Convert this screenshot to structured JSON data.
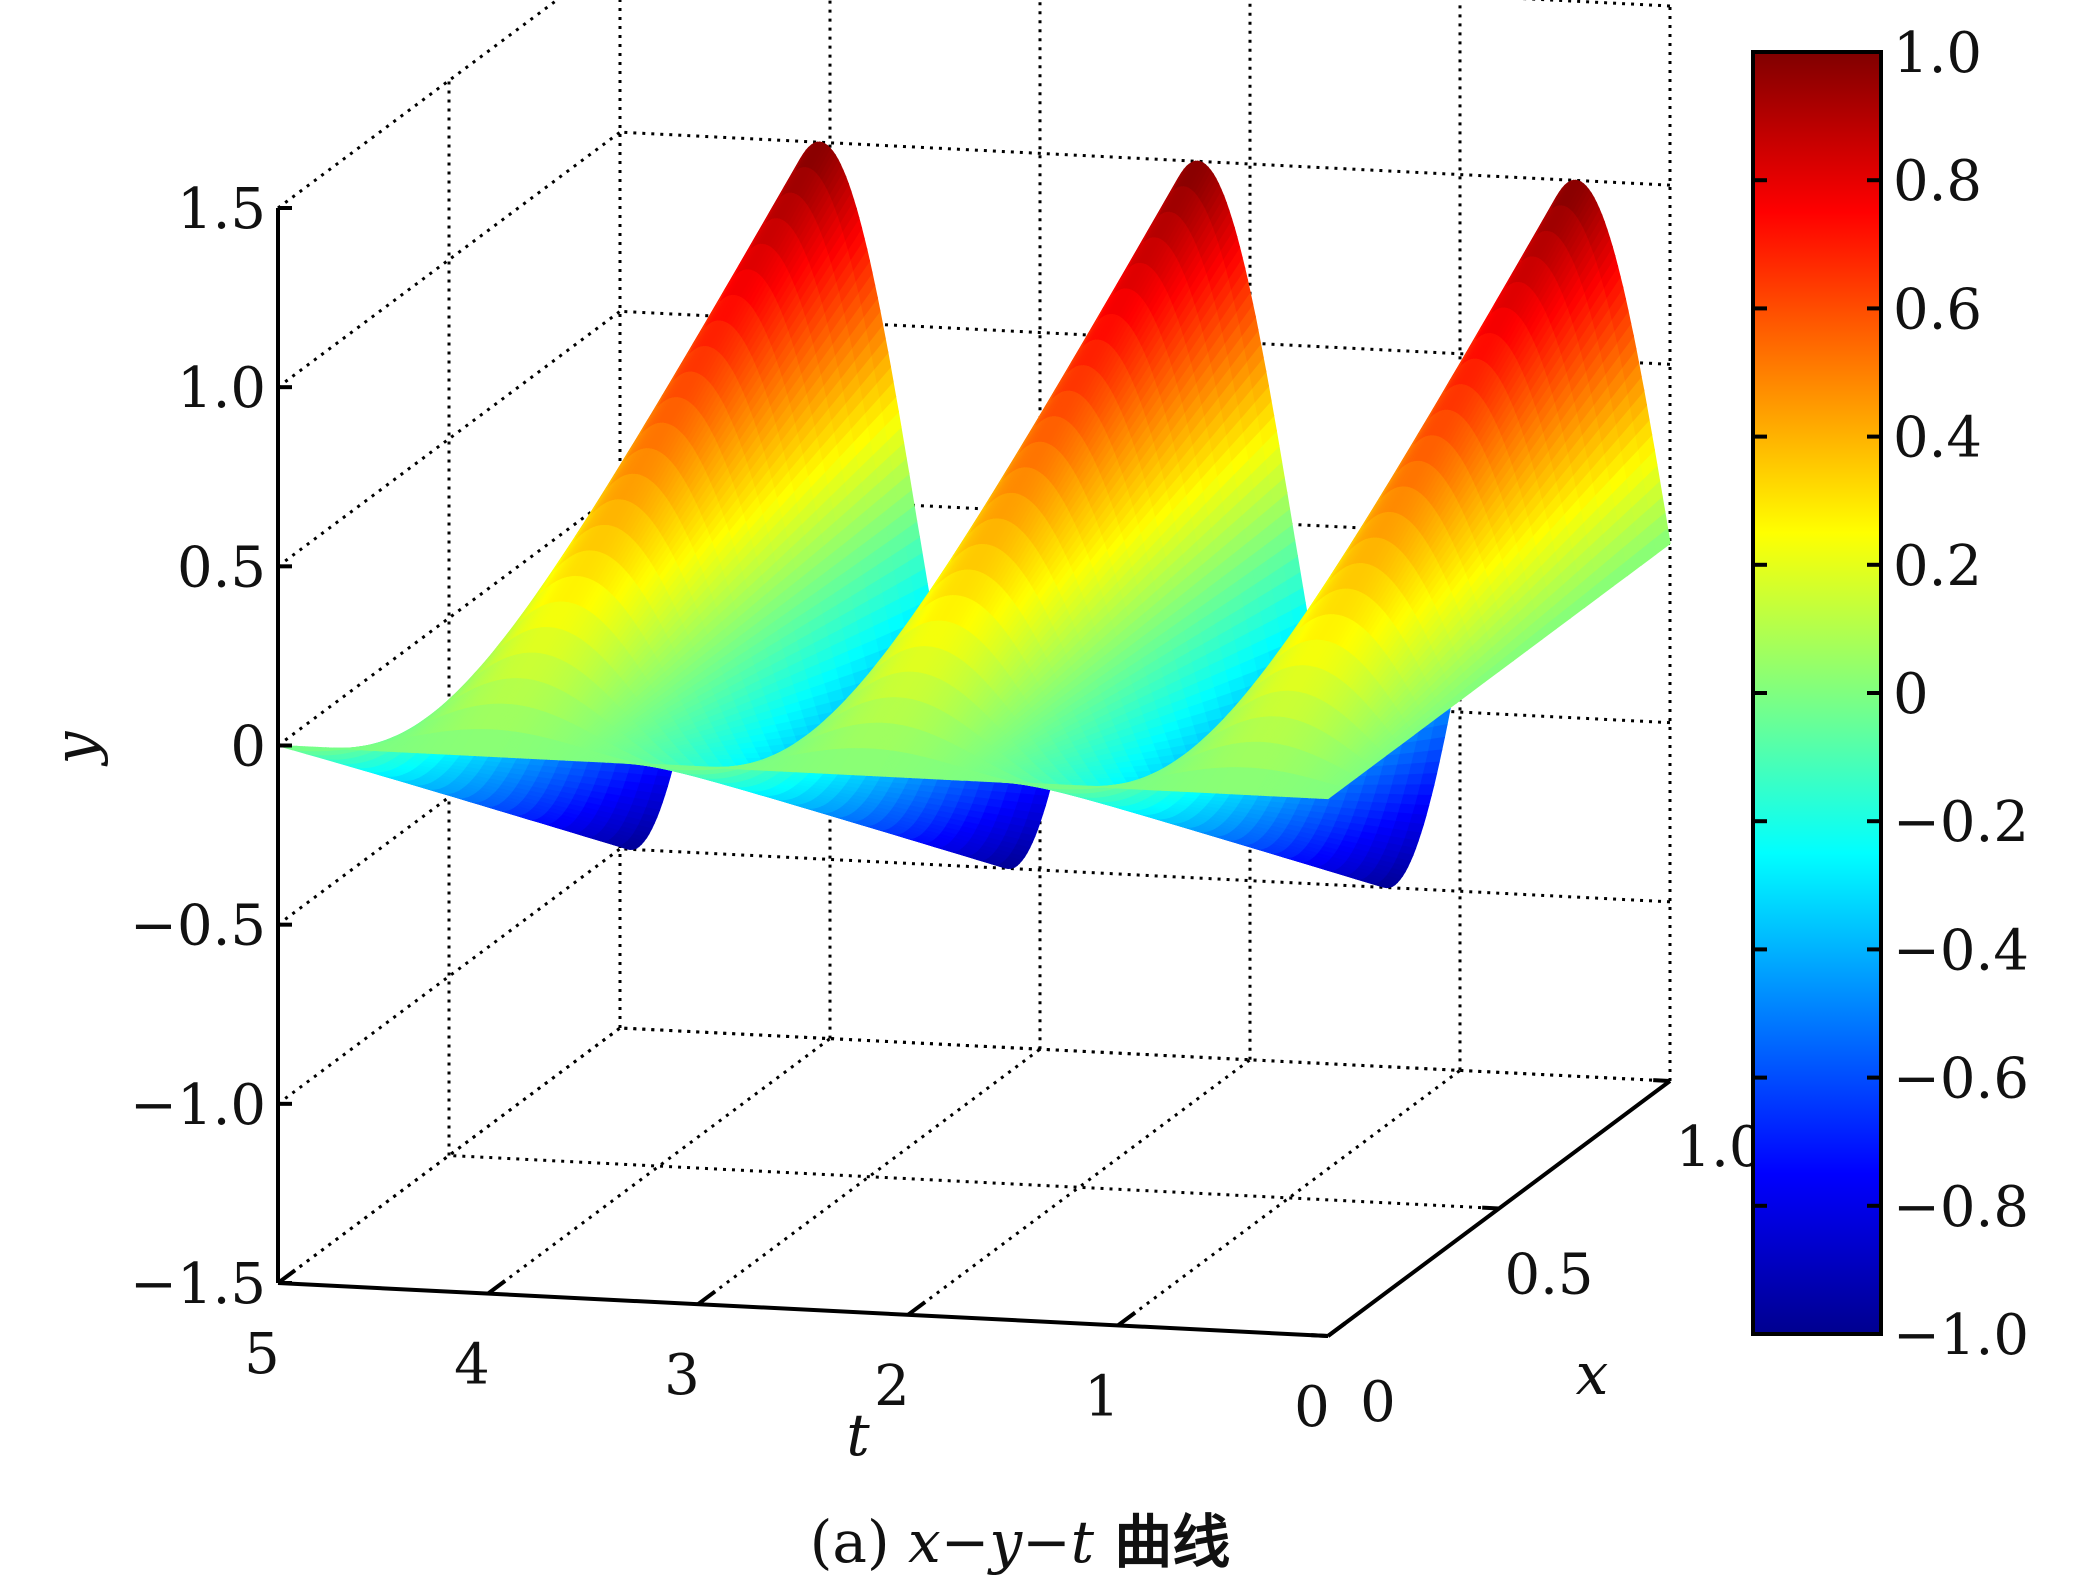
{
  "chart_data": {
    "type": "surface3d",
    "caption": "(a) x−y−t 曲线",
    "caption_parts": {
      "prefix": "(a) ",
      "vars": "x−y−t",
      "suffix": " 曲线"
    },
    "xlabel": "t",
    "ylabel": "x",
    "zlabel": "y",
    "t_range": [
      0,
      5
    ],
    "x_range": [
      0,
      1
    ],
    "y_range": [
      -1.5,
      1.5
    ],
    "t_ticks": [
      "0",
      "1",
      "2",
      "3",
      "4",
      "5"
    ],
    "x_ticks": [
      "0",
      "0.5",
      "1.0"
    ],
    "y_ticks": [
      "−1.5",
      "−1.0",
      "−0.5",
      "0",
      "0.5",
      "1.0",
      "1.5"
    ],
    "grid": true,
    "surface": {
      "description_function": "y = x · sin(2πt/1.8)",
      "amplitude": 1.0,
      "period": 1.8
    },
    "colorbar": {
      "colormap": "jet",
      "range": [
        -1.0,
        1.0
      ],
      "ticks": [
        "1.0",
        "0.8",
        "0.6",
        "0.4",
        "0.2",
        "0",
        "−0.2",
        "−0.4",
        "−0.6",
        "−0.8",
        "−1.0"
      ],
      "colors": [
        "#00008f",
        "#0000ff",
        "#00ffff",
        "#ffff00",
        "#ff0000",
        "#800000"
      ]
    }
  }
}
